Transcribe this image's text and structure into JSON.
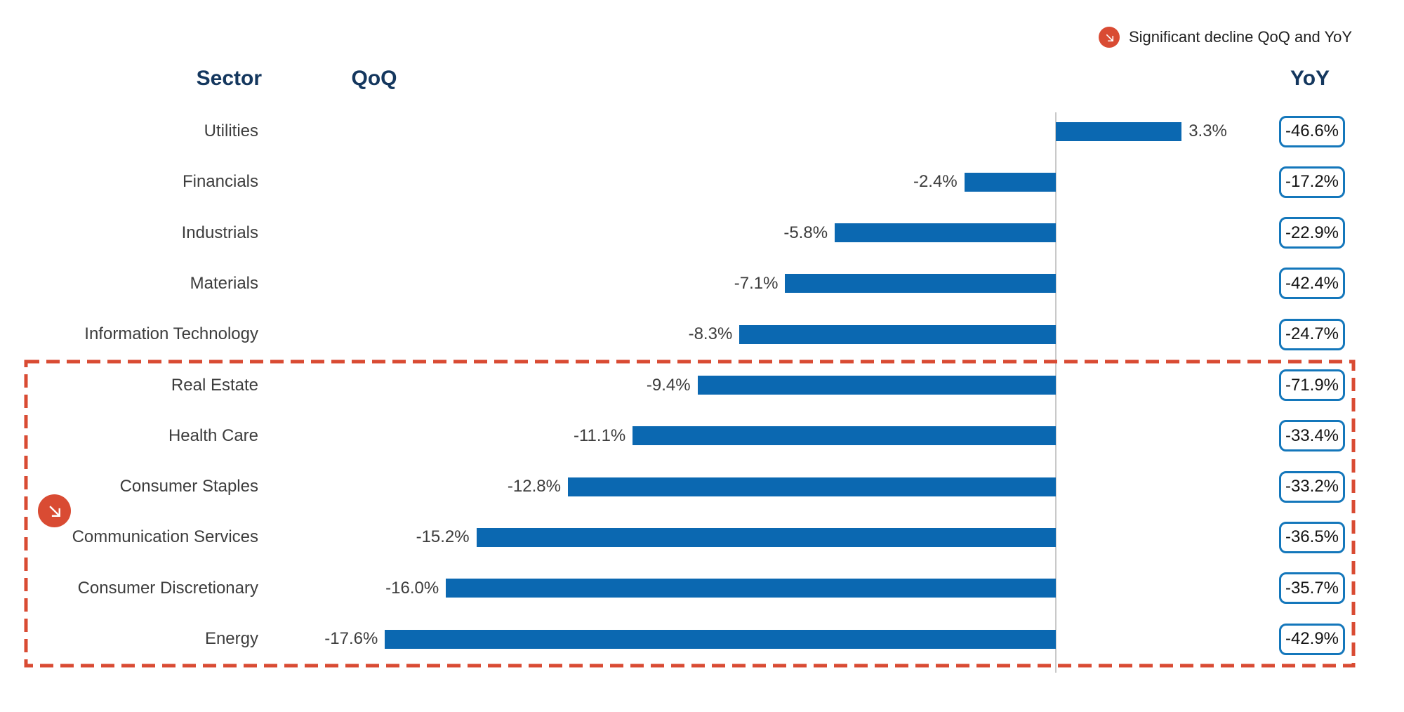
{
  "legend": {
    "icon": "decline-arrow-icon",
    "label": "Significant decline QoQ and YoY"
  },
  "headers": {
    "sector": "Sector",
    "qoq": "QoQ",
    "yoy": "YoY"
  },
  "chart_data": {
    "type": "bar",
    "orientation": "horizontal",
    "title": "",
    "xlabel": "",
    "ylabel": "",
    "unit": "%",
    "grid": false,
    "baseline": 0,
    "axis_range_pct": [
      -18.5,
      9
    ],
    "legend_position": "top-right",
    "value_label_position": "outside-bar-end",
    "categories": [
      "Utilities",
      "Financials",
      "Industrials",
      "Materials",
      "Information Technology",
      "Real Estate",
      "Health Care",
      "Consumer Staples",
      "Communication Services",
      "Consumer Discretionary",
      "Energy"
    ],
    "series": [
      {
        "name": "QoQ",
        "display": "bars",
        "values": [
          3.3,
          -2.4,
          -5.8,
          -7.1,
          -8.3,
          -9.4,
          -11.1,
          -12.8,
          -15.2,
          -16.0,
          -17.6
        ],
        "labels": [
          "3.3%",
          "-2.4%",
          "-5.8%",
          "-7.1%",
          "-8.3%",
          "-9.4%",
          "-11.1%",
          "-12.8%",
          "-15.2%",
          "-16.0%",
          "-17.6%"
        ]
      },
      {
        "name": "YoY",
        "display": "boxed-values",
        "values": [
          -46.6,
          -17.2,
          -22.9,
          -42.4,
          -24.7,
          -71.9,
          -33.4,
          -33.2,
          -36.5,
          -35.7,
          -42.9
        ],
        "labels": [
          "-46.6%",
          "-17.2%",
          "-22.9%",
          "-42.4%",
          "-24.7%",
          "-71.9%",
          "-33.4%",
          "-33.2%",
          "-36.5%",
          "-35.7%",
          "-42.9%"
        ]
      }
    ],
    "highlighted_categories": [
      "Real Estate",
      "Health Care",
      "Consumer Staples",
      "Communication Services",
      "Consumer Discretionary",
      "Energy"
    ],
    "highlight_note": "Significant decline QoQ and YoY"
  },
  "colors": {
    "bar_blue": "#0b68b1",
    "yoy_box_border": "#1477bb",
    "header_navy": "#14375e",
    "highlight_red": "#d94b33",
    "baseline_gray": "#c9c9c9",
    "text_dark": "#3d3d3d"
  }
}
